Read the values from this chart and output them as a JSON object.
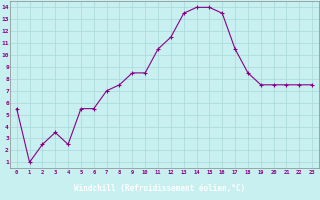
{
  "x": [
    0,
    1,
    2,
    3,
    4,
    5,
    6,
    7,
    8,
    9,
    10,
    11,
    12,
    13,
    14,
    15,
    16,
    17,
    18,
    19,
    20,
    21,
    22,
    23
  ],
  "y": [
    5.5,
    1.0,
    2.5,
    3.5,
    2.5,
    5.5,
    5.5,
    7.0,
    7.5,
    8.5,
    8.5,
    10.5,
    11.5,
    13.5,
    14.0,
    14.0,
    13.5,
    10.5,
    8.5,
    7.5,
    7.5,
    7.5,
    7.5,
    7.5
  ],
  "line_color": "#880088",
  "marker": "+",
  "marker_color": "#880088",
  "bg_color": "#c8f0f0",
  "grid_color": "#a8d8d8",
  "xlabel": "Windchill (Refroidissement éolien,°C)",
  "xlabel_bg": "#6060a8",
  "xlabel_color": "#ffffff",
  "ylabel_ticks": [
    1,
    2,
    3,
    4,
    5,
    6,
    7,
    8,
    9,
    10,
    11,
    12,
    13,
    14
  ],
  "xlim": [
    -0.5,
    23.5
  ],
  "ylim": [
    0.5,
    14.5
  ],
  "tick_color": "#880088"
}
